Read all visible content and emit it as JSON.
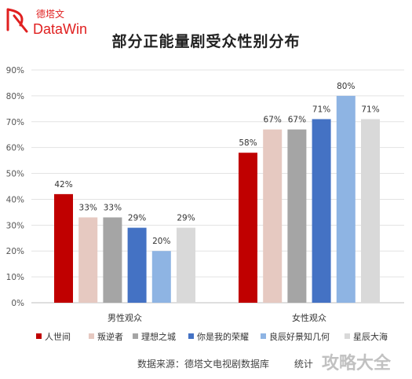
{
  "logo": {
    "cn": "德塔文",
    "en": "DataWin",
    "color": "#e02020"
  },
  "chart_data": {
    "type": "bar",
    "title": "部分正能量剧受众性别分布",
    "categories": [
      "男性观众",
      "女性观众"
    ],
    "series": [
      {
        "name": "人世间",
        "color": "#c00000",
        "values": [
          42,
          58
        ],
        "labels": [
          "42%",
          "58%"
        ]
      },
      {
        "name": "叛逆者",
        "color": "#e6c9c1",
        "values": [
          33,
          67
        ],
        "labels": [
          "33%",
          "67%"
        ]
      },
      {
        "name": "理想之城",
        "color": "#a5a5a5",
        "values": [
          33,
          67
        ],
        "labels": [
          "33%",
          "67%"
        ]
      },
      {
        "name": "你是我的荣耀",
        "color": "#4472c4",
        "values": [
          29,
          71
        ],
        "labels": [
          "29%",
          "71%"
        ]
      },
      {
        "name": "良辰好景知几何",
        "color": "#8eb4e3",
        "values": [
          20,
          80
        ],
        "labels": [
          "20%",
          "80%"
        ]
      },
      {
        "name": "星辰大海",
        "color": "#d9d9d9",
        "values": [
          29,
          71
        ],
        "labels": [
          "29%",
          "71%"
        ]
      }
    ],
    "ylim": [
      0,
      90
    ],
    "yticks": [
      0,
      10,
      20,
      30,
      40,
      50,
      60,
      70,
      80,
      90
    ],
    "ytick_labels": [
      "0%",
      "10%",
      "20%",
      "30%",
      "40%",
      "50%",
      "60%",
      "70%",
      "80%",
      "90%"
    ],
    "grid": true,
    "legend_position": "bottom"
  },
  "footer": {
    "source": "数据来源：德塔文电视剧数据库",
    "stat": "统计"
  },
  "watermark": "攻略大全"
}
